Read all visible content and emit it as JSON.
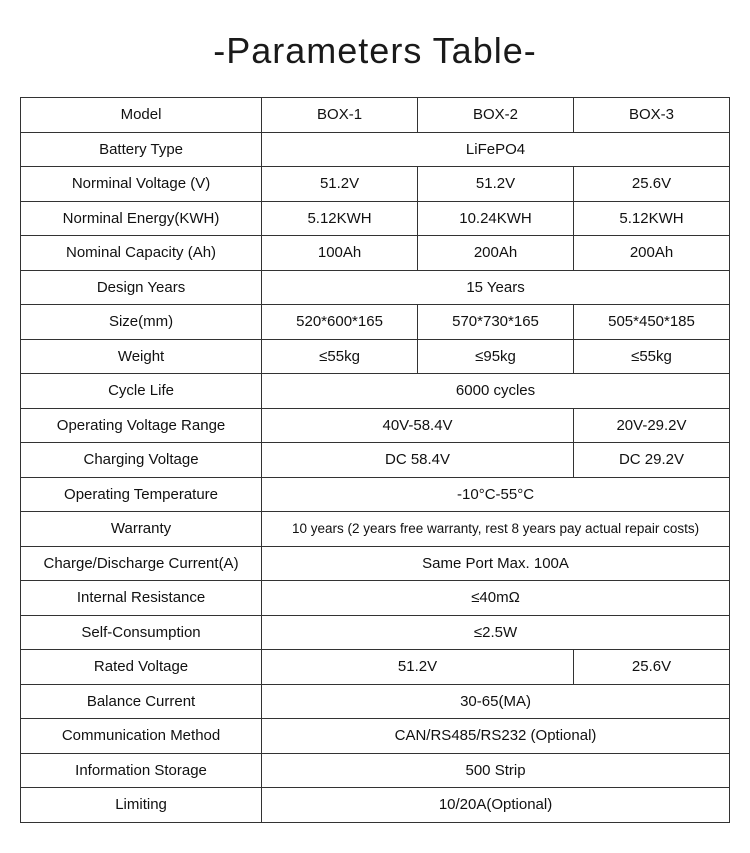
{
  "title": "-Parameters Table-",
  "colors": {
    "border": "#333333",
    "text": "#111111",
    "background": "#ffffff",
    "title": "#1a1a1a"
  },
  "typography": {
    "title_fontsize": 36,
    "title_weight": 300,
    "cell_fontsize": 15,
    "small_fontsize": 13.5,
    "font_family": "Arial, Helvetica, sans-serif"
  },
  "table": {
    "type": "table",
    "column_widths_pct": [
      34,
      22,
      22,
      22
    ],
    "rows": [
      {
        "type": "four",
        "label": "Model",
        "c1": "BOX-1",
        "c2": "BOX-2",
        "c3": "BOX-3"
      },
      {
        "type": "span3",
        "label": "Battery Type",
        "value": "LiFePO4"
      },
      {
        "type": "four",
        "label": "Norminal Voltage (V)",
        "c1": "51.2V",
        "c2": "51.2V",
        "c3": "25.6V"
      },
      {
        "type": "four",
        "label": "Norminal Energy(KWH)",
        "c1": "5.12KWH",
        "c2": "10.24KWH",
        "c3": "5.12KWH"
      },
      {
        "type": "four",
        "label": "Nominal Capacity (Ah)",
        "c1": "100Ah",
        "c2": "200Ah",
        "c3": "200Ah"
      },
      {
        "type": "span3",
        "label": "Design Years",
        "value": "15 Years"
      },
      {
        "type": "four",
        "label": "Size(mm)",
        "c1": "520*600*165",
        "c2": "570*730*165",
        "c3": "505*450*185"
      },
      {
        "type": "four",
        "label": "Weight",
        "c1": "≤55kg",
        "c2": "≤95kg",
        "c3": "≤55kg"
      },
      {
        "type": "span3",
        "label": "Cycle Life",
        "value": "6000 cycles"
      },
      {
        "type": "two_one",
        "label": "Operating Voltage Range",
        "c12": "40V-58.4V",
        "c3": "20V-29.2V"
      },
      {
        "type": "two_one",
        "label": "Charging Voltage",
        "c12": "DC 58.4V",
        "c3": "DC 29.2V"
      },
      {
        "type": "span3",
        "label": "Operating Temperature",
        "value": "-10°C-55°C"
      },
      {
        "type": "span3",
        "label": "Warranty",
        "value": "10 years (2 years free warranty, rest 8 years pay actual repair costs)",
        "value_class": "small"
      },
      {
        "type": "span3",
        "label": "Charge/Discharge Current(A)",
        "value": "Same Port Max. 100A"
      },
      {
        "type": "span3",
        "label": "Internal Resistance",
        "value": "≤40mΩ"
      },
      {
        "type": "span3",
        "label": "Self-Consumption",
        "value": "≤2.5W"
      },
      {
        "type": "two_one",
        "label": "Rated Voltage",
        "c12": "51.2V",
        "c3": "25.6V"
      },
      {
        "type": "span3",
        "label": "Balance Current",
        "value": "30-65(MA)"
      },
      {
        "type": "span3",
        "label": "Communication Method",
        "value": "CAN/RS485/RS232 (Optional)"
      },
      {
        "type": "span3",
        "label": "Information Storage",
        "value": "500 Strip"
      },
      {
        "type": "span3",
        "label": "Limiting",
        "value": "10/20A(Optional)"
      }
    ]
  }
}
